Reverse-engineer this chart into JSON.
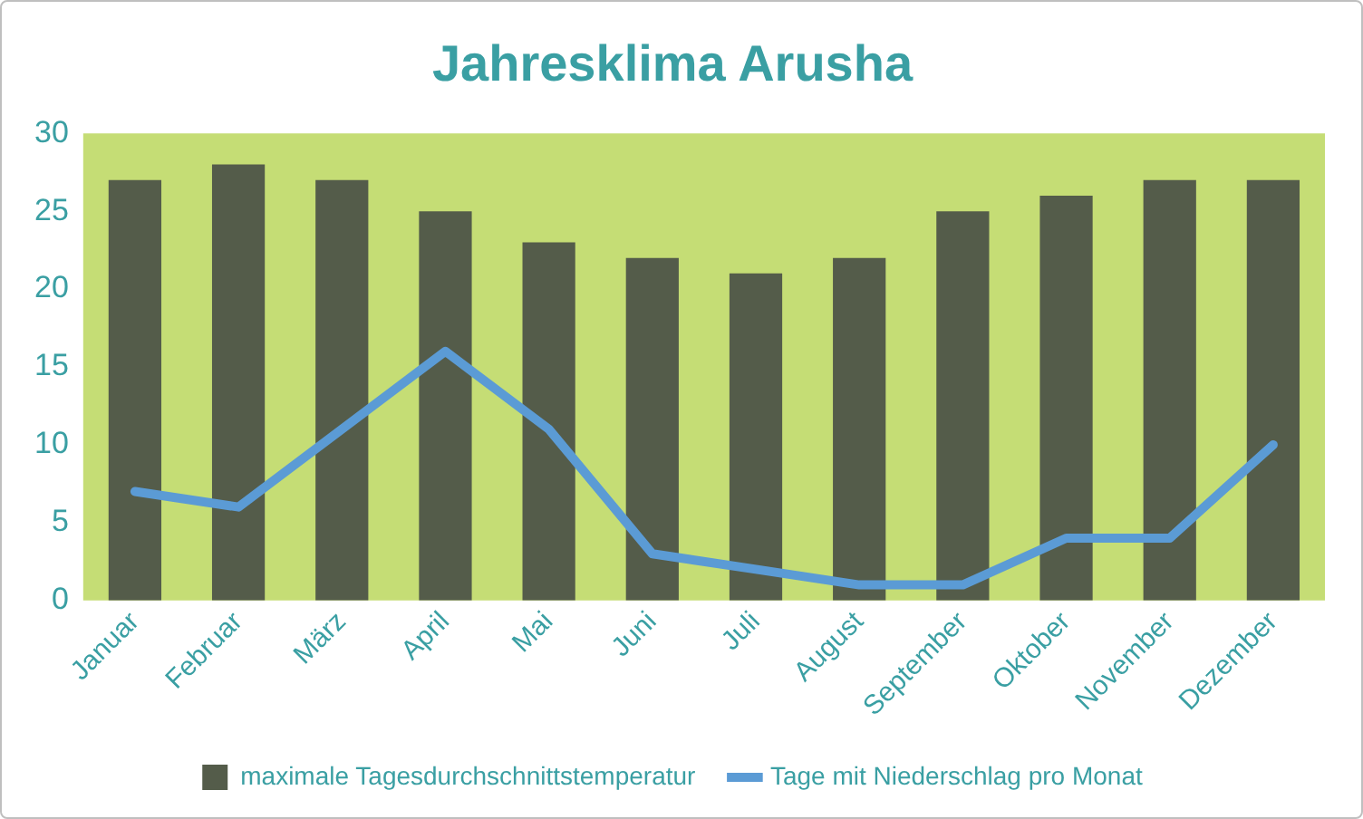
{
  "chart_data": {
    "type": "bar",
    "title": "Jahresklima Arusha",
    "categories": [
      "Januar",
      "Februar",
      "März",
      "April",
      "Mai",
      "Juni",
      "Juli",
      "August",
      "September",
      "Oktober",
      "November",
      "Dezember"
    ],
    "series": [
      {
        "name": "maximale Tagesdurchschnittstemperatur",
        "color": "#545c4a",
        "values": [
          27,
          28,
          27,
          25,
          23,
          22,
          21,
          22,
          25,
          26,
          27,
          27
        ]
      },
      {
        "name": "Tage mit Niederschlag pro Monat",
        "type": "line",
        "color": "#5b9bd5",
        "values": [
          7,
          6,
          11,
          16,
          11,
          3,
          2,
          1,
          1,
          4,
          4,
          10
        ]
      }
    ],
    "ylim": [
      0,
      30
    ],
    "yticks": [
      0,
      5,
      10,
      15,
      20,
      25,
      30
    ],
    "grid": false,
    "legend": "bottom",
    "marker": "none"
  }
}
